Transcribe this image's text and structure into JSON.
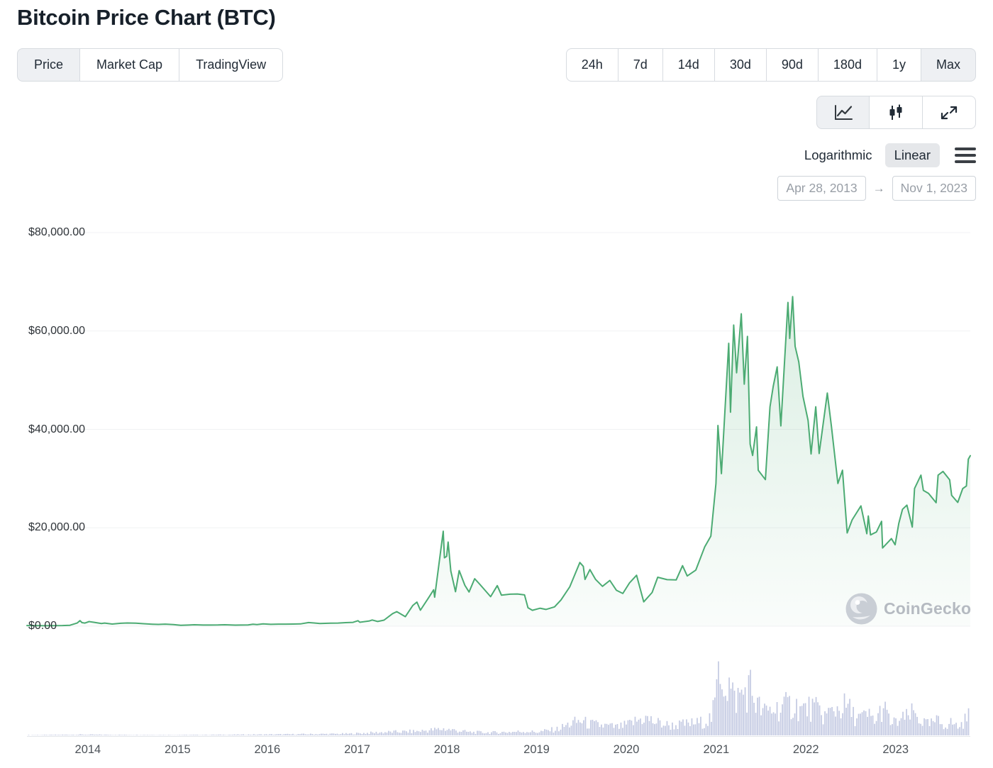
{
  "page": {
    "title": "Bitcoin Price Chart (BTC)"
  },
  "toolbar": {
    "chart_tabs": [
      {
        "label": "Price",
        "selected": true
      },
      {
        "label": "Market Cap",
        "selected": false
      },
      {
        "label": "TradingView",
        "selected": false
      }
    ],
    "ranges": [
      {
        "label": "24h",
        "selected": false
      },
      {
        "label": "7d",
        "selected": false
      },
      {
        "label": "14d",
        "selected": false
      },
      {
        "label": "30d",
        "selected": false
      },
      {
        "label": "90d",
        "selected": false
      },
      {
        "label": "180d",
        "selected": false
      },
      {
        "label": "1y",
        "selected": false
      },
      {
        "label": "Max",
        "selected": true
      }
    ],
    "chart_type_buttons": [
      {
        "icon": "line-chart-icon",
        "selected": true
      },
      {
        "icon": "candlestick-icon",
        "selected": false
      },
      {
        "icon": "fullscreen-icon",
        "selected": false
      }
    ],
    "scale_toggle": {
      "options": [
        {
          "label": "Logarithmic",
          "selected": false
        },
        {
          "label": "Linear",
          "selected": true
        }
      ]
    },
    "menu_icon": "hamburger-icon",
    "date_range": {
      "start": "Apr 28, 2013",
      "arrow": "→",
      "end": "Nov 1, 2023"
    }
  },
  "watermark": {
    "icon": "coingecko-logo-icon",
    "label": "CoinGecko"
  },
  "chart_data": {
    "type": "line",
    "title": "Bitcoin Price Chart (BTC)",
    "currency": "USD",
    "x_range": [
      "2013-04-28",
      "2023-11-01"
    ],
    "ylim": [
      0,
      80000
    ],
    "yticks": [
      "$80,000.00",
      "$60,000.00",
      "$40,000.00",
      "$20,000.00",
      "$0.00"
    ],
    "ytick_values": [
      80000,
      60000,
      40000,
      20000,
      0
    ],
    "xticks": [
      "2014",
      "2015",
      "2016",
      "2017",
      "2018",
      "2019",
      "2020",
      "2021",
      "2022",
      "2023"
    ],
    "grid": "horizontal-faint",
    "legend": "none",
    "line_color": "#4cab73",
    "fill_color": "#4cab73",
    "volume_color": "#c3c9e2",
    "series": [
      {
        "name": "BTC Price (USD)",
        "points": [
          [
            "2013-04-28",
            135
          ],
          [
            "2013-05-20",
            122
          ],
          [
            "2013-06-20",
            105
          ],
          [
            "2013-07-06",
            80
          ],
          [
            "2013-08-20",
            115
          ],
          [
            "2013-09-20",
            130
          ],
          [
            "2013-10-20",
            185
          ],
          [
            "2013-11-18",
            640
          ],
          [
            "2013-11-30",
            1130
          ],
          [
            "2013-12-08",
            720
          ],
          [
            "2013-12-20",
            640
          ],
          [
            "2014-01-06",
            930
          ],
          [
            "2014-01-25",
            800
          ],
          [
            "2014-02-25",
            550
          ],
          [
            "2014-03-10",
            630
          ],
          [
            "2014-04-10",
            430
          ],
          [
            "2014-05-15",
            590
          ],
          [
            "2014-06-10",
            650
          ],
          [
            "2014-07-15",
            620
          ],
          [
            "2014-08-15",
            510
          ],
          [
            "2014-09-20",
            410
          ],
          [
            "2014-10-15",
            360
          ],
          [
            "2014-11-12",
            420
          ],
          [
            "2014-12-15",
            330
          ],
          [
            "2015-01-14",
            180
          ],
          [
            "2015-02-15",
            235
          ],
          [
            "2015-03-10",
            290
          ],
          [
            "2015-04-15",
            225
          ],
          [
            "2015-05-15",
            237
          ],
          [
            "2015-06-15",
            245
          ],
          [
            "2015-07-12",
            290
          ],
          [
            "2015-08-24",
            210
          ],
          [
            "2015-09-15",
            235
          ],
          [
            "2015-10-15",
            265
          ],
          [
            "2015-11-04",
            405
          ],
          [
            "2015-11-20",
            320
          ],
          [
            "2015-12-15",
            455
          ],
          [
            "2016-01-15",
            380
          ],
          [
            "2016-02-15",
            420
          ],
          [
            "2016-03-15",
            415
          ],
          [
            "2016-04-15",
            430
          ],
          [
            "2016-05-15",
            455
          ],
          [
            "2016-06-17",
            735
          ],
          [
            "2016-07-10",
            650
          ],
          [
            "2016-08-02",
            550
          ],
          [
            "2016-09-15",
            610
          ],
          [
            "2016-10-15",
            640
          ],
          [
            "2016-11-15",
            715
          ],
          [
            "2016-12-15",
            780
          ],
          [
            "2017-01-04",
            1110
          ],
          [
            "2017-01-12",
            800
          ],
          [
            "2017-02-20",
            1060
          ],
          [
            "2017-03-03",
            1260
          ],
          [
            "2017-03-25",
            950
          ],
          [
            "2017-04-20",
            1230
          ],
          [
            "2017-05-25",
            2550
          ],
          [
            "2017-06-11",
            2960
          ],
          [
            "2017-07-16",
            1930
          ],
          [
            "2017-08-15",
            4200
          ],
          [
            "2017-09-01",
            4900
          ],
          [
            "2017-09-15",
            3250
          ],
          [
            "2017-10-20",
            5900
          ],
          [
            "2017-11-08",
            7400
          ],
          [
            "2017-11-12",
            5900
          ],
          [
            "2017-12-17",
            19300
          ],
          [
            "2017-12-22",
            13900
          ],
          [
            "2017-12-31",
            14200
          ],
          [
            "2018-01-06",
            17100
          ],
          [
            "2018-01-17",
            11200
          ],
          [
            "2018-02-05",
            7000
          ],
          [
            "2018-02-20",
            11300
          ],
          [
            "2018-03-15",
            8300
          ],
          [
            "2018-04-01",
            6950
          ],
          [
            "2018-04-24",
            9650
          ],
          [
            "2018-05-15",
            8500
          ],
          [
            "2018-06-28",
            6000
          ],
          [
            "2018-07-25",
            8250
          ],
          [
            "2018-08-11",
            6300
          ],
          [
            "2018-09-15",
            6500
          ],
          [
            "2018-10-15",
            6550
          ],
          [
            "2018-11-13",
            6350
          ],
          [
            "2018-11-27",
            3750
          ],
          [
            "2018-12-15",
            3230
          ],
          [
            "2019-01-15",
            3650
          ],
          [
            "2019-02-08",
            3400
          ],
          [
            "2019-03-15",
            3920
          ],
          [
            "2019-04-10",
            5300
          ],
          [
            "2019-05-16",
            8000
          ],
          [
            "2019-06-26",
            12950
          ],
          [
            "2019-07-10",
            12150
          ],
          [
            "2019-07-17",
            9500
          ],
          [
            "2019-08-06",
            11500
          ],
          [
            "2019-08-29",
            9500
          ],
          [
            "2019-09-26",
            8100
          ],
          [
            "2019-10-26",
            9300
          ],
          [
            "2019-11-22",
            7300
          ],
          [
            "2019-12-18",
            6650
          ],
          [
            "2020-01-14",
            8800
          ],
          [
            "2020-02-12",
            10350
          ],
          [
            "2020-03-12",
            4950
          ],
          [
            "2020-04-15",
            6850
          ],
          [
            "2020-05-08",
            9950
          ],
          [
            "2020-06-15",
            9450
          ],
          [
            "2020-07-22",
            9400
          ],
          [
            "2020-08-17",
            12300
          ],
          [
            "2020-09-05",
            10200
          ],
          [
            "2020-10-10",
            11400
          ],
          [
            "2020-11-15",
            16100
          ],
          [
            "2020-12-10",
            18300
          ],
          [
            "2020-12-31",
            29000
          ],
          [
            "2021-01-08",
            40800
          ],
          [
            "2021-01-22",
            31000
          ],
          [
            "2021-02-21",
            57500
          ],
          [
            "2021-02-28",
            43500
          ],
          [
            "2021-03-13",
            61200
          ],
          [
            "2021-03-25",
            51500
          ],
          [
            "2021-04-13",
            63500
          ],
          [
            "2021-04-25",
            49200
          ],
          [
            "2021-05-08",
            58900
          ],
          [
            "2021-05-19",
            37000
          ],
          [
            "2021-05-29",
            34700
          ],
          [
            "2021-06-14",
            40500
          ],
          [
            "2021-06-21",
            31700
          ],
          [
            "2021-07-20",
            29800
          ],
          [
            "2021-08-08",
            44600
          ],
          [
            "2021-08-21",
            48800
          ],
          [
            "2021-09-06",
            52700
          ],
          [
            "2021-09-21",
            40700
          ],
          [
            "2021-10-20",
            65800
          ],
          [
            "2021-10-27",
            58500
          ],
          [
            "2021-11-08",
            67000
          ],
          [
            "2021-11-18",
            56900
          ],
          [
            "2021-12-03",
            53700
          ],
          [
            "2021-12-20",
            46700
          ],
          [
            "2022-01-10",
            41800
          ],
          [
            "2022-01-22",
            35000
          ],
          [
            "2022-02-10",
            44600
          ],
          [
            "2022-02-24",
            35100
          ],
          [
            "2022-03-29",
            47400
          ],
          [
            "2022-04-15",
            40500
          ],
          [
            "2022-05-11",
            29000
          ],
          [
            "2022-05-30",
            31700
          ],
          [
            "2022-06-18",
            18950
          ],
          [
            "2022-07-08",
            21600
          ],
          [
            "2022-08-13",
            24450
          ],
          [
            "2022-09-06",
            18800
          ],
          [
            "2022-09-12",
            22400
          ],
          [
            "2022-09-21",
            18550
          ],
          [
            "2022-10-15",
            19150
          ],
          [
            "2022-11-05",
            21300
          ],
          [
            "2022-11-09",
            15900
          ],
          [
            "2022-12-15",
            17800
          ],
          [
            "2022-12-30",
            16550
          ],
          [
            "2023-01-14",
            20900
          ],
          [
            "2023-01-29",
            23750
          ],
          [
            "2023-02-16",
            24600
          ],
          [
            "2023-03-10",
            20150
          ],
          [
            "2023-03-19",
            28000
          ],
          [
            "2023-04-14",
            30700
          ],
          [
            "2023-04-24",
            27600
          ],
          [
            "2023-05-15",
            27000
          ],
          [
            "2023-06-15",
            25100
          ],
          [
            "2023-06-23",
            30700
          ],
          [
            "2023-07-13",
            31450
          ],
          [
            "2023-08-09",
            29750
          ],
          [
            "2023-08-17",
            26600
          ],
          [
            "2023-09-11",
            25150
          ],
          [
            "2023-10-01",
            27970
          ],
          [
            "2023-10-16",
            28500
          ],
          [
            "2023-10-24",
            33950
          ],
          [
            "2023-11-01",
            34650
          ]
        ]
      }
    ],
    "volume_series": {
      "name": "Volume (relative %)",
      "points": [
        [
          "2013-06-01",
          0.4
        ],
        [
          "2013-12-01",
          1
        ],
        [
          "2014-06-01",
          0.6
        ],
        [
          "2015-01-01",
          0.5
        ],
        [
          "2015-11-01",
          1
        ],
        [
          "2016-06-01",
          1.5
        ],
        [
          "2016-12-01",
          2
        ],
        [
          "2017-05-01",
          4
        ],
        [
          "2017-09-01",
          5
        ],
        [
          "2017-12-20",
          8
        ],
        [
          "2018-01-15",
          7
        ],
        [
          "2018-02-10",
          6
        ],
        [
          "2018-04-01",
          4
        ],
        [
          "2018-07-01",
          3.5
        ],
        [
          "2018-11-25",
          5
        ],
        [
          "2019-01-01",
          4
        ],
        [
          "2019-04-01",
          8
        ],
        [
          "2019-05-15",
          14
        ],
        [
          "2019-07-01",
          18
        ],
        [
          "2019-08-01",
          14
        ],
        [
          "2019-10-01",
          12
        ],
        [
          "2019-12-01",
          10
        ],
        [
          "2020-01-15",
          14
        ],
        [
          "2020-03-13",
          22
        ],
        [
          "2020-05-01",
          16
        ],
        [
          "2020-07-01",
          12
        ],
        [
          "2020-09-01",
          14
        ],
        [
          "2020-11-01",
          16
        ],
        [
          "2020-12-15",
          22
        ],
        [
          "2021-01-05",
          55
        ],
        [
          "2021-01-12",
          100
        ],
        [
          "2021-02-01",
          70
        ],
        [
          "2021-02-23",
          62
        ],
        [
          "2021-03-15",
          44
        ],
        [
          "2021-04-18",
          52
        ],
        [
          "2021-05-19",
          60
        ],
        [
          "2021-06-15",
          38
        ],
        [
          "2021-07-15",
          28
        ],
        [
          "2021-08-15",
          32
        ],
        [
          "2021-09-15",
          34
        ],
        [
          "2021-10-15",
          36
        ],
        [
          "2021-11-15",
          38
        ],
        [
          "2021-12-15",
          32
        ],
        [
          "2022-01-22",
          34
        ],
        [
          "2022-02-24",
          30
        ],
        [
          "2022-03-15",
          24
        ],
        [
          "2022-05-12",
          34
        ],
        [
          "2022-06-18",
          36
        ],
        [
          "2022-07-15",
          24
        ],
        [
          "2022-08-15",
          22
        ],
        [
          "2022-09-15",
          24
        ],
        [
          "2022-10-15",
          18
        ],
        [
          "2022-11-09",
          36
        ],
        [
          "2022-12-15",
          14
        ],
        [
          "2023-01-15",
          18
        ],
        [
          "2023-02-15",
          22
        ],
        [
          "2023-03-15",
          28
        ],
        [
          "2023-04-15",
          18
        ],
        [
          "2023-05-15",
          13
        ],
        [
          "2023-06-20",
          18
        ],
        [
          "2023-07-15",
          13
        ],
        [
          "2023-08-18",
          16
        ],
        [
          "2023-09-15",
          10
        ],
        [
          "2023-10-20",
          22
        ],
        [
          "2023-11-01",
          26
        ]
      ]
    }
  }
}
